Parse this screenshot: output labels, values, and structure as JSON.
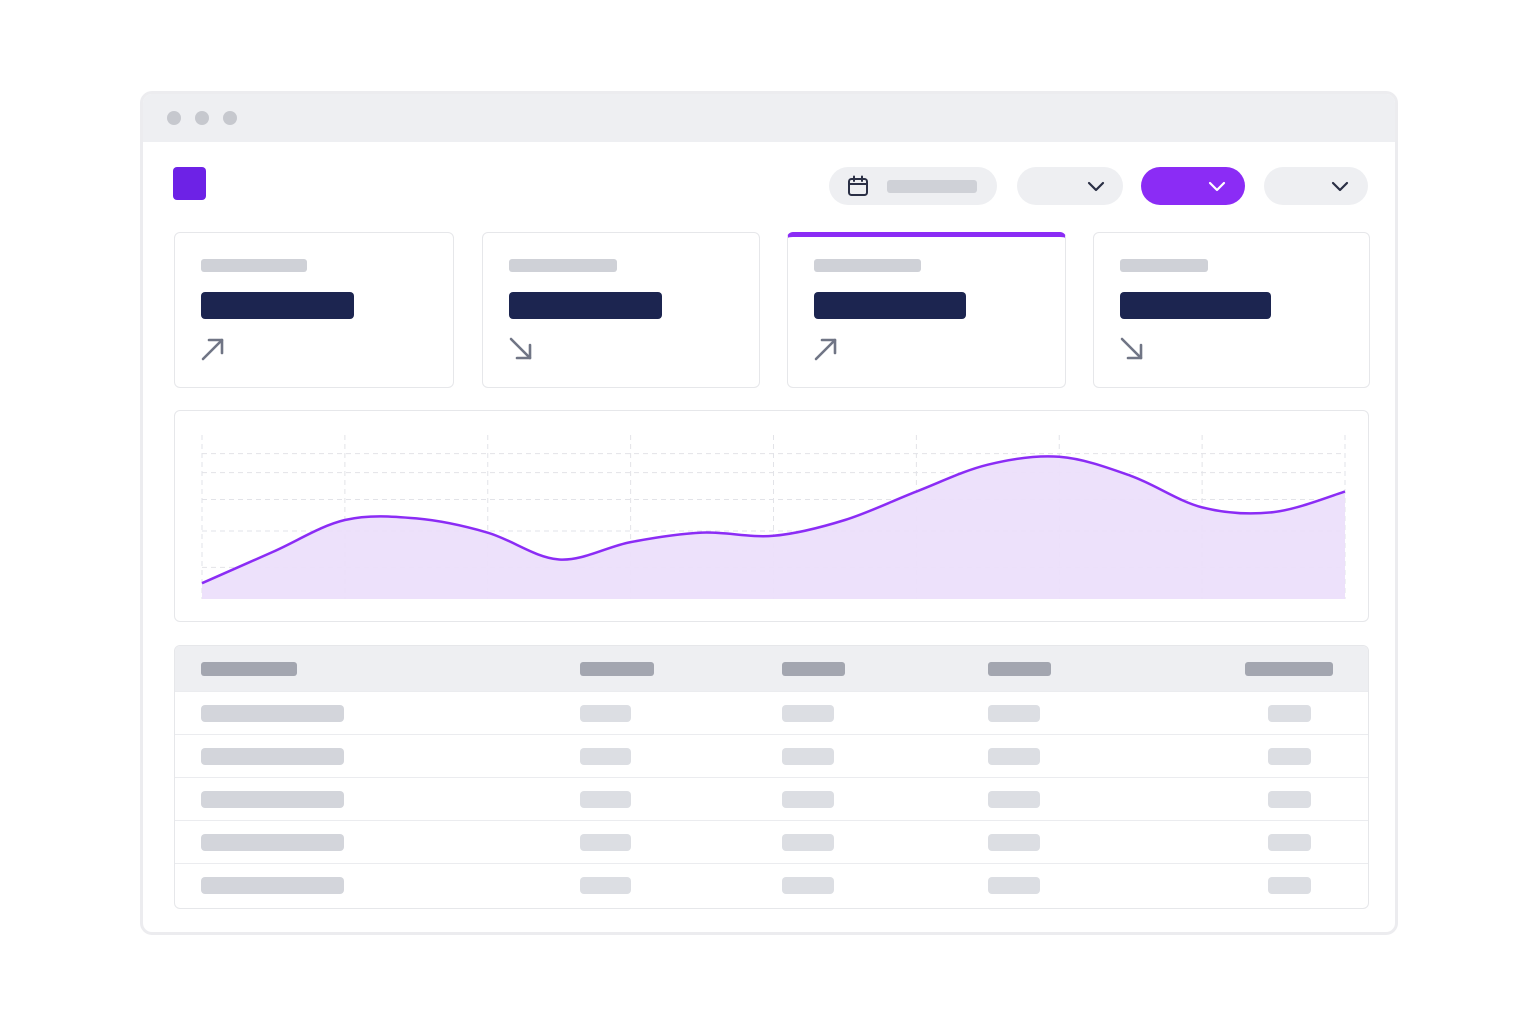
{
  "window": {
    "titlebar_dots": [
      "close",
      "minimize",
      "maximize"
    ]
  },
  "header": {
    "logo": "app-logo",
    "date_picker": {
      "icon": "calendar-icon",
      "value": ""
    },
    "filters": [
      {
        "name": "filter-1",
        "icon": "chevron-down-icon",
        "value": ""
      },
      {
        "name": "filter-2",
        "icon": "chevron-down-icon",
        "value": "",
        "active": true
      },
      {
        "name": "filter-3",
        "icon": "chevron-down-icon",
        "value": ""
      }
    ]
  },
  "kpi_cards": [
    {
      "label": "",
      "value": "",
      "trend": "up",
      "icon": "arrow-up-right-icon"
    },
    {
      "label": "",
      "value": "",
      "trend": "down",
      "icon": "arrow-down-right-icon"
    },
    {
      "label": "",
      "value": "",
      "trend": "up",
      "icon": "arrow-up-right-icon",
      "selected": true
    },
    {
      "label": "",
      "value": "",
      "trend": "down",
      "icon": "arrow-down-right-icon"
    }
  ],
  "chart_data": {
    "type": "area",
    "title": "",
    "xlabel": "",
    "ylabel": "",
    "x": [
      0,
      1,
      2,
      3,
      4,
      5,
      6,
      7,
      8,
      9,
      10,
      11,
      12,
      13,
      14,
      15,
      16
    ],
    "y_axis_range": [
      0,
      1
    ],
    "grid": true,
    "legend": "none",
    "series": [
      {
        "values": [
          0.1,
          0.3,
          0.5,
          0.51,
          0.42,
          0.25,
          0.36,
          0.42,
          0.4,
          0.5,
          0.68,
          0.85,
          0.9,
          0.78,
          0.58,
          0.55,
          0.68
        ]
      }
    ],
    "colors": {
      "line": "#8b2cf5",
      "fill": "#ecdffb"
    }
  },
  "table": {
    "columns": [
      "",
      "",
      "",
      "",
      ""
    ],
    "rows": [
      [
        "",
        "",
        "",
        "",
        ""
      ],
      [
        "",
        "",
        "",
        "",
        ""
      ],
      [
        "",
        "",
        "",
        "",
        ""
      ],
      [
        "",
        "",
        "",
        "",
        ""
      ],
      [
        "",
        "",
        "",
        "",
        ""
      ]
    ]
  },
  "colors": {
    "accent": "#8b2cf5",
    "logo": "#6d22e6",
    "value_bar": "#1c2550"
  }
}
